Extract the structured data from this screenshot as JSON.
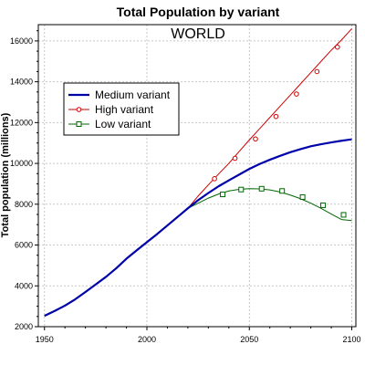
{
  "chart_data": {
    "type": "line",
    "title": "Total Population by variant",
    "subtitle": "WORLD",
    "xlabel": "",
    "ylabel": "Total population (millions)",
    "xlim": [
      1947,
      2102
    ],
    "ylim": [
      2000,
      16800
    ],
    "x_ticks": [
      1950,
      2000,
      2050,
      2100
    ],
    "y_ticks": [
      2000,
      4000,
      6000,
      8000,
      10000,
      12000,
      14000,
      16000
    ],
    "grid": true,
    "legend_position": "upper-left",
    "series": [
      {
        "name": "Medium variant",
        "color": "#0000aa",
        "marker": "none",
        "x": [
          1950,
          1955,
          1960,
          1965,
          1970,
          1975,
          1980,
          1985,
          1990,
          1995,
          2000,
          2005,
          2010,
          2015,
          2020,
          2025,
          2030,
          2035,
          2040,
          2045,
          2050,
          2055,
          2060,
          2065,
          2070,
          2075,
          2080,
          2085,
          2090,
          2095,
          2100
        ],
        "y": [
          2530,
          2770,
          3030,
          3340,
          3700,
          4070,
          4440,
          4860,
          5330,
          5740,
          6140,
          6540,
          6960,
          7380,
          7800,
          8200,
          8550,
          8880,
          9170,
          9450,
          9730,
          9970,
          10180,
          10370,
          10550,
          10700,
          10840,
          10940,
          11030,
          11110,
          11180
        ]
      },
      {
        "name": "High variant",
        "color": "#cc0000",
        "marker": "circle",
        "x": [
          1950,
          1955,
          1960,
          1965,
          1970,
          1975,
          1980,
          1985,
          1990,
          1995,
          2000,
          2005,
          2010,
          2015,
          2020,
          2025,
          2030,
          2035,
          2040,
          2045,
          2050,
          2055,
          2060,
          2065,
          2070,
          2075,
          2080,
          2085,
          2090,
          2095,
          2100
        ],
        "y": [
          2530,
          2770,
          3030,
          3340,
          3700,
          4070,
          4440,
          4860,
          5330,
          5740,
          6140,
          6540,
          6960,
          7380,
          7800,
          8400,
          8950,
          9480,
          10000,
          10580,
          11150,
          11700,
          12250,
          12800,
          13350,
          13900,
          14450,
          15000,
          15550,
          16050,
          16600
        ],
        "marker_x": [
          2033,
          2043,
          2053,
          2063,
          2073,
          2083,
          2093
        ],
        "marker_y": [
          9250,
          10250,
          11200,
          12300,
          13400,
          14500,
          15700
        ]
      },
      {
        "name": "Low variant",
        "color": "#006600",
        "marker": "square",
        "x": [
          1950,
          1955,
          1960,
          1965,
          1970,
          1975,
          1980,
          1985,
          1990,
          1995,
          2000,
          2005,
          2010,
          2015,
          2020,
          2025,
          2030,
          2035,
          2040,
          2045,
          2050,
          2055,
          2060,
          2065,
          2070,
          2075,
          2080,
          2085,
          2090,
          2095,
          2100
        ],
        "y": [
          2530,
          2770,
          3030,
          3340,
          3700,
          4070,
          4440,
          4860,
          5330,
          5740,
          6140,
          6540,
          6960,
          7380,
          7800,
          8050,
          8300,
          8500,
          8650,
          8730,
          8760,
          8750,
          8700,
          8600,
          8450,
          8270,
          8050,
          7800,
          7520,
          7250,
          7200
        ],
        "marker_x": [
          2037,
          2046,
          2056,
          2066,
          2076,
          2086,
          2096
        ],
        "marker_y": [
          8480,
          8720,
          8760,
          8650,
          8350,
          7950,
          7480
        ]
      }
    ]
  }
}
